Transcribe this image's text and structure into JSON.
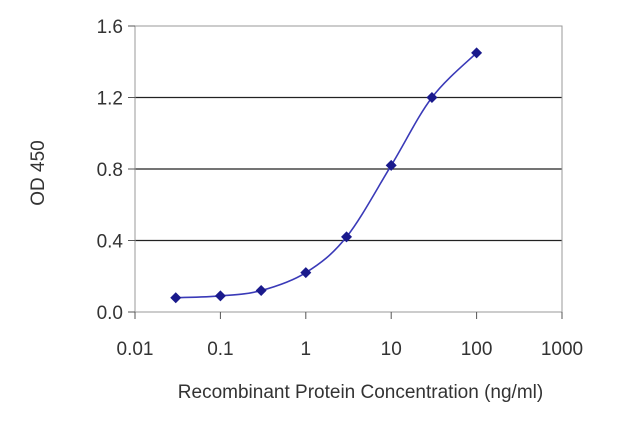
{
  "chart_data": {
    "type": "line",
    "xlabel": "Recombinant Protein Concentration (ng/ml)",
    "ylabel": "OD 450",
    "x_scale": "log",
    "xlim": [
      0.01,
      1000
    ],
    "ylim": [
      0.0,
      1.6
    ],
    "x_ticks": [
      "0.01",
      "0.1",
      "1",
      "10",
      "100",
      "1000"
    ],
    "y_ticks": [
      "0.0",
      "0.4",
      "0.8",
      "1.2",
      "1.6"
    ],
    "grid": "horizontal",
    "series": [
      {
        "color": "#1a1a8c",
        "x": [
          0.03,
          0.1,
          0.3,
          1,
          3,
          10,
          30,
          100
        ],
        "y": [
          0.08,
          0.09,
          0.12,
          0.22,
          0.42,
          0.82,
          1.2,
          1.45
        ]
      }
    ]
  }
}
